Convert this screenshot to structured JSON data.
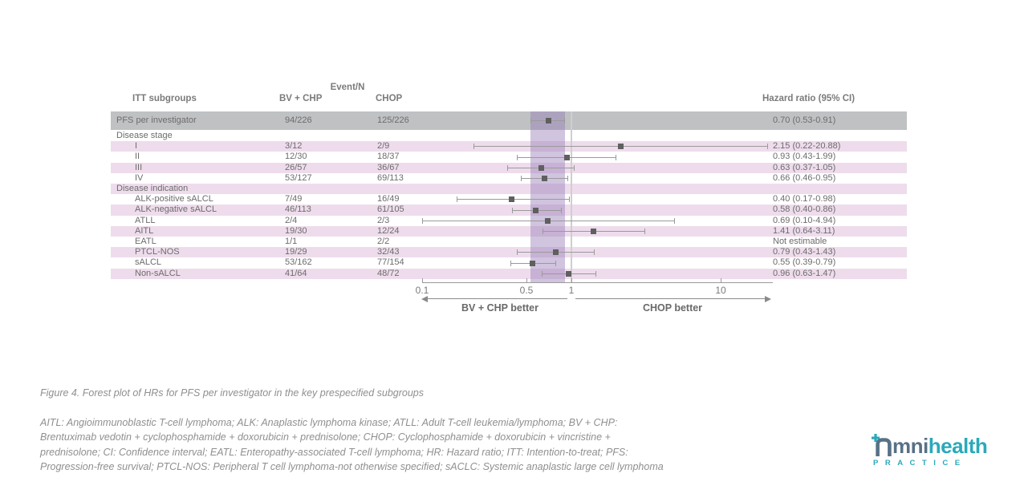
{
  "table": {
    "headers": {
      "itt": "ITT subgroups",
      "event_n": "Event/N",
      "bv_chp": "BV + CHP",
      "chop": "CHOP",
      "hazard": "Hazard ratio (95% CI)"
    }
  },
  "chart_data": {
    "type": "forest",
    "xscale": "log",
    "xlim": [
      0.1,
      21
    ],
    "reference_line": 1,
    "shaded_band": {
      "lo": 0.53,
      "hi": 0.91
    },
    "rows": [
      {
        "label": "PFS per investigator",
        "indent": 0,
        "bv_chp": "94/226",
        "chop": "125/226",
        "hr_text": "0.70 (0.53-0.91)",
        "hr": 0.7,
        "lo": 0.53,
        "hi": 0.91,
        "bg": "gray"
      },
      {
        "label": "Disease stage",
        "indent": 0,
        "bv_chp": "",
        "chop": "",
        "hr_text": "",
        "hr": null,
        "lo": null,
        "hi": null,
        "bg": "white"
      },
      {
        "label": "I",
        "indent": 1,
        "bv_chp": "3/12",
        "chop": "2/9",
        "hr_text": "2.15 (0.22-20.88)",
        "hr": 2.15,
        "lo": 0.22,
        "hi": 20.88,
        "bg": "pink"
      },
      {
        "label": "II",
        "indent": 1,
        "bv_chp": "12/30",
        "chop": "18/37",
        "hr_text": "0.93 (0.43-1.99)",
        "hr": 0.93,
        "lo": 0.43,
        "hi": 1.99,
        "bg": "white"
      },
      {
        "label": "III",
        "indent": 1,
        "bv_chp": "26/57",
        "chop": "36/67",
        "hr_text": "0.63 (0.37-1.05)",
        "hr": 0.63,
        "lo": 0.37,
        "hi": 1.05,
        "bg": "pink"
      },
      {
        "label": "IV",
        "indent": 1,
        "bv_chp": "53/127",
        "chop": "69/113",
        "hr_text": "0.66 (0.46-0.95)",
        "hr": 0.66,
        "lo": 0.46,
        "hi": 0.95,
        "bg": "white"
      },
      {
        "label": "Disease indication",
        "indent": 0,
        "bv_chp": "",
        "chop": "",
        "hr_text": "",
        "hr": null,
        "lo": null,
        "hi": null,
        "bg": "pink"
      },
      {
        "label": "ALK-positive sALCL",
        "indent": 1,
        "bv_chp": "7/49",
        "chop": "16/49",
        "hr_text": "0.40 (0.17-0.98)",
        "hr": 0.4,
        "lo": 0.17,
        "hi": 0.98,
        "bg": "white"
      },
      {
        "label": "ALK-negative sALCL",
        "indent": 1,
        "bv_chp": "46/113",
        "chop": "61/105",
        "hr_text": "0.58 (0.40-0.86)",
        "hr": 0.58,
        "lo": 0.4,
        "hi": 0.86,
        "bg": "pink"
      },
      {
        "label": "ATLL",
        "indent": 1,
        "bv_chp": "2/4",
        "chop": "2/3",
        "hr_text": "0.69 (0.10-4.94)",
        "hr": 0.69,
        "lo": 0.1,
        "hi": 4.94,
        "bg": "white"
      },
      {
        "label": "AITL",
        "indent": 1,
        "bv_chp": "19/30",
        "chop": "12/24",
        "hr_text": "1.41 (0.64-3.11)",
        "hr": 1.41,
        "lo": 0.64,
        "hi": 3.11,
        "bg": "pink"
      },
      {
        "label": "EATL",
        "indent": 1,
        "bv_chp": "1/1",
        "chop": "2/2",
        "hr_text": "Not estimable",
        "hr": null,
        "lo": null,
        "hi": null,
        "bg": "white"
      },
      {
        "label": "PTCL-NOS",
        "indent": 1,
        "bv_chp": "19/29",
        "chop": "32/43",
        "hr_text": "0.79 (0.43-1.43)",
        "hr": 0.79,
        "lo": 0.43,
        "hi": 1.43,
        "bg": "pink"
      },
      {
        "label": "sALCL",
        "indent": 1,
        "bv_chp": "53/162",
        "chop": "77/154",
        "hr_text": "0.55 (0.39-0.79)",
        "hr": 0.55,
        "lo": 0.39,
        "hi": 0.79,
        "bg": "white"
      },
      {
        "label": "Non-sALCL",
        "indent": 1,
        "bv_chp": "41/64",
        "chop": "48/72",
        "hr_text": "0.96 (0.63-1.47)",
        "hr": 0.96,
        "lo": 0.63,
        "hi": 1.47,
        "bg": "pink"
      }
    ]
  },
  "axis": {
    "ticks": [
      0.1,
      0.5,
      1,
      10
    ],
    "tick_labels": [
      "0.1",
      "0.5",
      "1",
      "10"
    ],
    "left_label": "BV + CHP better",
    "right_label": "CHOP better"
  },
  "caption": "Figure 4. Forest plot of HRs for PFS per investigator in the key prespecified subgroups",
  "footnote_lines": [
    "AITL: Angioimmunoblastic T-cell lymphoma; ALK: Anaplastic lymphoma kinase; ATLL: Adult T-cell leukemia/lymphoma; BV + CHP:",
    "Brentuximab vedotin + cyclophosphamide + doxorubicin + prednisolone; CHOP: Cyclophosphamide + doxorubicin + vincristine +",
    "prednisolone; CI: Confidence interval; EATL: Enteropathy-associated T-cell lymphoma; HR: Hazard ratio; ITT: Intention-to-treat; PFS:",
    "Progression-free survival; PTCL-NOS: Peripheral T cell lymphoma-not otherwise specified; sACLC: Systemic anaplastic large cell lymphoma"
  ],
  "logo": {
    "text_part1": "mni",
    "text_part2": "health",
    "subtitle": "PRACTICE"
  },
  "colors": {
    "row_pink": "#eedcec",
    "row_gray": "#bfc1c3",
    "band_purple": "#967cb8",
    "band_opacity": "0.45",
    "reference_line": "#cfcfcf",
    "marker": "#5f5f5f",
    "whisker": "#9a9a9a",
    "logo_slate": "#577186",
    "logo_teal": "#2ba9ba"
  }
}
